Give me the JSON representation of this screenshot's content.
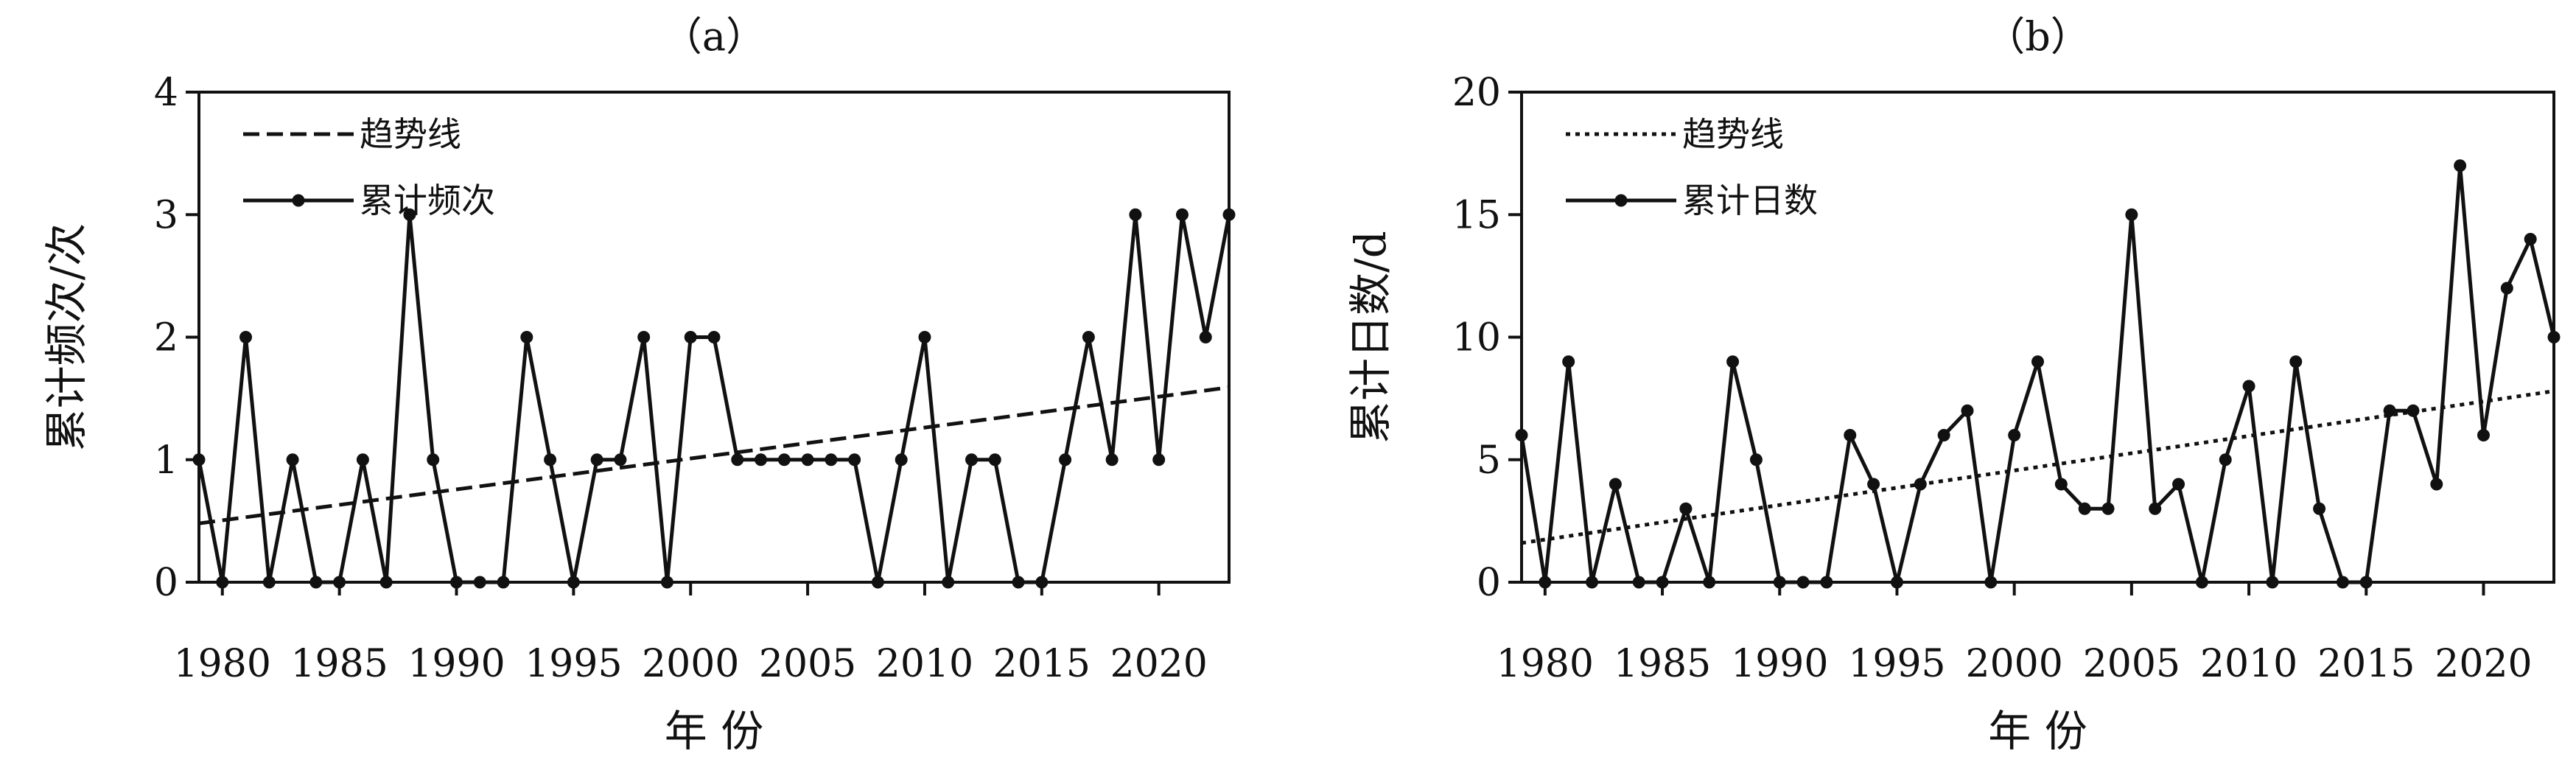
{
  "chart_data": [
    {
      "type": "line",
      "panel_label": "（a）",
      "xlabel": "年 份",
      "ylabel": "累计频次/次",
      "ylim": [
        0,
        4
      ],
      "yticks": [
        0,
        1,
        2,
        3,
        4
      ],
      "xlim": [
        1979,
        2023
      ],
      "xticks": [
        1980,
        1985,
        1990,
        1995,
        2000,
        2005,
        2010,
        2015,
        2020
      ],
      "grid": false,
      "legend_position": "top-left",
      "x": [
        1979,
        1980,
        1981,
        1982,
        1983,
        1984,
        1985,
        1986,
        1987,
        1988,
        1989,
        1990,
        1991,
        1992,
        1993,
        1994,
        1995,
        1996,
        1997,
        1998,
        1999,
        2000,
        2001,
        2002,
        2003,
        2004,
        2005,
        2006,
        2007,
        2008,
        2009,
        2010,
        2011,
        2012,
        2013,
        2014,
        2015,
        2016,
        2017,
        2018,
        2019,
        2020,
        2021,
        2022,
        2023
      ],
      "series": [
        {
          "name": "累计频次",
          "style": "solid-with-markers",
          "values": [
            1,
            0,
            2,
            0,
            1,
            0,
            0,
            1,
            0,
            3,
            1,
            0,
            0,
            0,
            2,
            1,
            0,
            1,
            1,
            2,
            0,
            2,
            2,
            1,
            1,
            1,
            1,
            1,
            1,
            0,
            1,
            2,
            0,
            1,
            1,
            0,
            0,
            1,
            2,
            1,
            3,
            1,
            3,
            2,
            3
          ]
        },
        {
          "name": "趋势线",
          "style": "dashed",
          "x": [
            1979,
            2023
          ],
          "values": [
            0.48,
            1.59
          ]
        }
      ]
    },
    {
      "type": "line",
      "panel_label": "（b）",
      "xlabel": "年 份",
      "ylabel": "累计日数/d",
      "ylim": [
        0,
        20
      ],
      "yticks": [
        0,
        5,
        10,
        15,
        20
      ],
      "xlim": [
        1979,
        2023
      ],
      "xticks": [
        1980,
        1985,
        1990,
        1995,
        2000,
        2005,
        2010,
        2015,
        2020
      ],
      "grid": false,
      "legend_position": "top-left",
      "x": [
        1979,
        1980,
        1981,
        1982,
        1983,
        1984,
        1985,
        1986,
        1987,
        1988,
        1989,
        1990,
        1991,
        1992,
        1993,
        1994,
        1995,
        1996,
        1997,
        1998,
        1999,
        2000,
        2001,
        2002,
        2003,
        2004,
        2005,
        2006,
        2007,
        2008,
        2009,
        2010,
        2011,
        2012,
        2013,
        2014,
        2015,
        2016,
        2017,
        2018,
        2019,
        2020,
        2021,
        2022,
        2023
      ],
      "series": [
        {
          "name": "累计日数",
          "style": "solid-with-markers",
          "values": [
            6,
            0,
            9,
            0,
            4,
            0,
            0,
            3,
            0,
            9,
            5,
            0,
            0,
            0,
            6,
            4,
            0,
            4,
            6,
            7,
            0,
            6,
            9,
            4,
            3,
            3,
            15,
            3,
            4,
            0,
            5,
            8,
            0,
            9,
            3,
            0,
            0,
            7,
            7,
            4,
            17,
            6,
            12,
            14,
            10
          ]
        },
        {
          "name": "趋势线",
          "style": "dotted",
          "x": [
            1979,
            2023
          ],
          "values": [
            1.6,
            7.8
          ]
        }
      ]
    }
  ]
}
